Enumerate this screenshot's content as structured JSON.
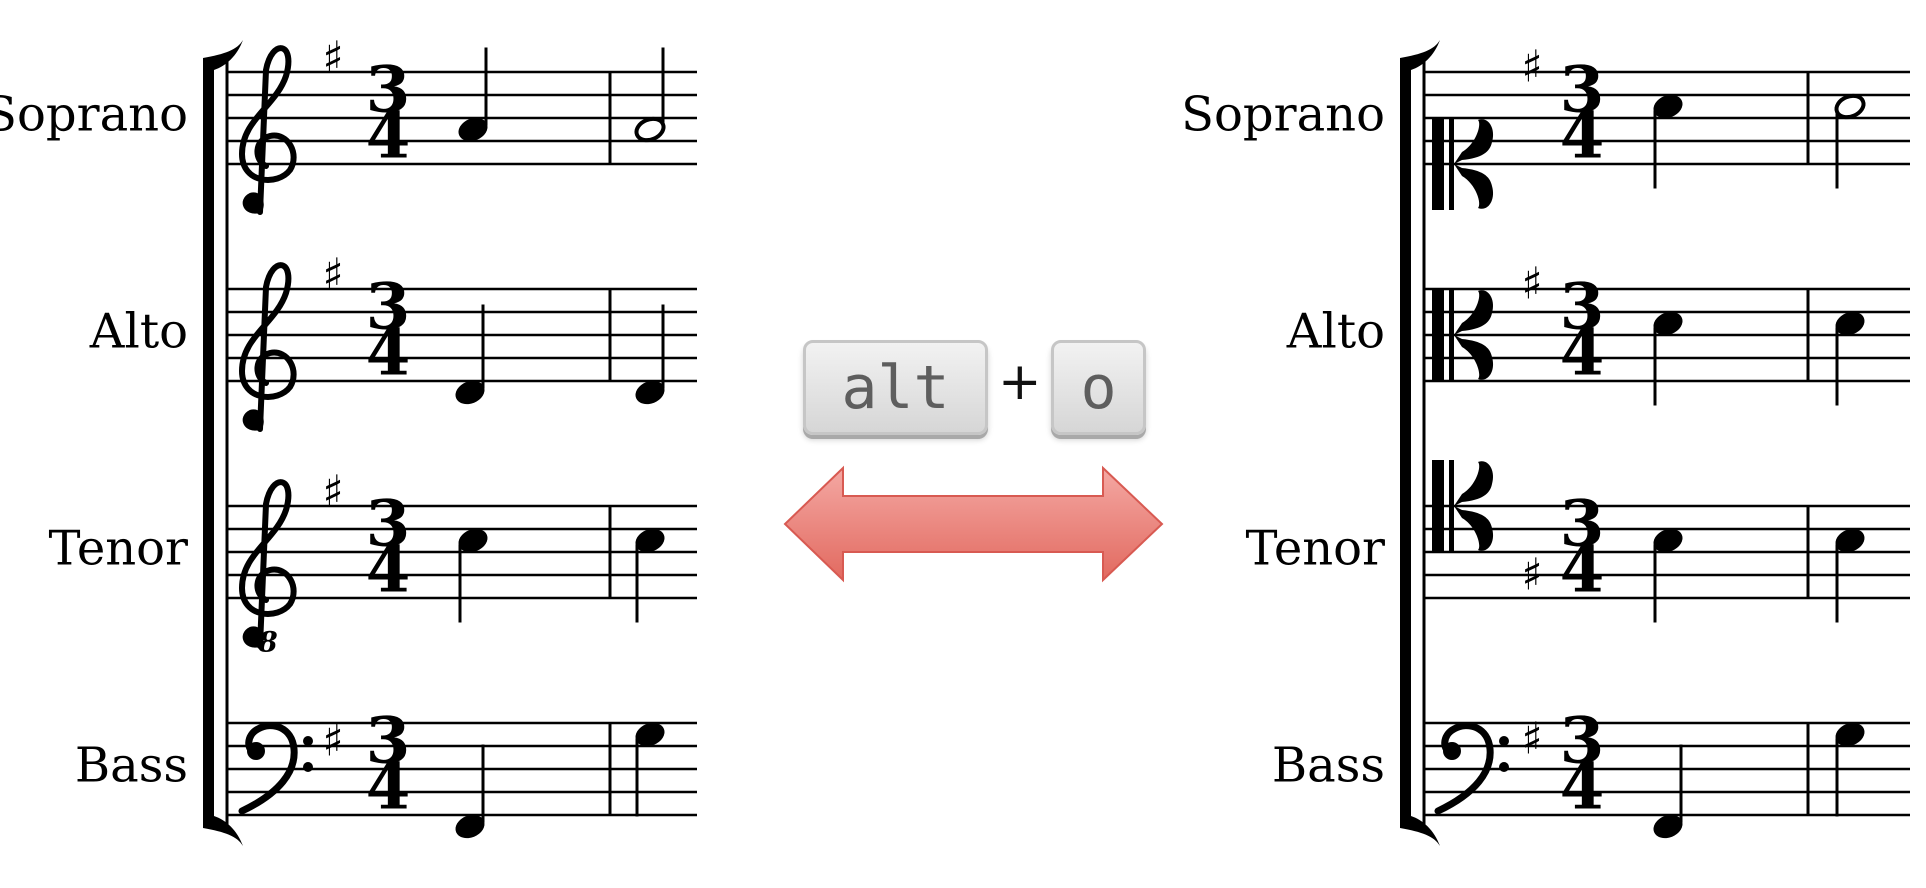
{
  "left_score": {
    "parts": [
      {
        "name": "Soprano",
        "clef": "treble"
      },
      {
        "name": "Alto",
        "clef": "treble"
      },
      {
        "name": "Tenor",
        "clef": "treble-8vb",
        "octave_mark": "8"
      },
      {
        "name": "Bass",
        "clef": "bass"
      }
    ],
    "time_signature": {
      "top": "3",
      "bottom": "4"
    },
    "key_signature": "♯"
  },
  "right_score": {
    "parts": [
      {
        "name": "Soprano",
        "clef": "c-clef"
      },
      {
        "name": "Alto",
        "clef": "c-clef"
      },
      {
        "name": "Tenor",
        "clef": "c-clef"
      },
      {
        "name": "Bass",
        "clef": "bass"
      }
    ],
    "time_signature": {
      "top": "3",
      "bottom": "4"
    },
    "key_signature": "♯"
  },
  "shortcut": {
    "key1": "alt",
    "plus": "+",
    "key2": "o"
  },
  "colors": {
    "arrow_top": "#f4a8a3",
    "arrow_bottom": "#e26a60",
    "arrow_edge": "#d85a52",
    "ink": "#000000"
  }
}
